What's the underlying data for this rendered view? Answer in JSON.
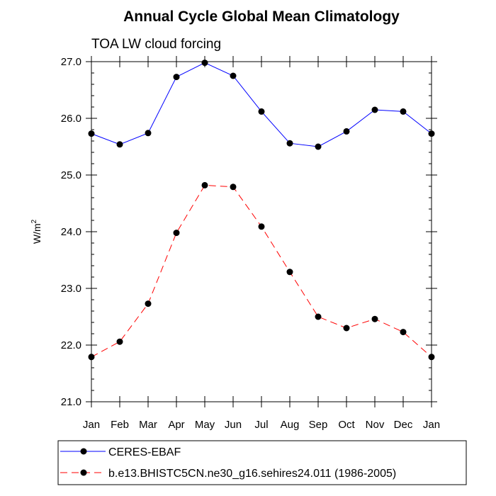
{
  "chart_data": {
    "type": "line",
    "title": "Annual Cycle Global Mean Climatology",
    "subtitle": "TOA LW cloud forcing",
    "ylabel": "W/m",
    "ylabel_sup": "2",
    "ylim": [
      21.0,
      27.0
    ],
    "yticks": [
      "21.0",
      "22.0",
      "23.0",
      "24.0",
      "25.0",
      "26.0",
      "27.0"
    ],
    "categories": [
      "Jan",
      "Feb",
      "Mar",
      "Apr",
      "May",
      "Jun",
      "Jul",
      "Aug",
      "Sep",
      "Oct",
      "Nov",
      "Dec",
      "Jan"
    ],
    "grid": false,
    "legend_position": "bottom",
    "series": [
      {
        "name": "CERES-EBAF",
        "color": "#0000ff",
        "style": "solid",
        "values": [
          25.73,
          25.54,
          25.74,
          26.73,
          26.98,
          26.75,
          26.12,
          25.56,
          25.5,
          25.77,
          26.15,
          26.12,
          25.73
        ]
      },
      {
        "name": "b.e13.BHISTC5CN.ne30_g16.sehires24.011 (1986-2005)",
        "color": "#ff0000",
        "style": "dashed",
        "values": [
          21.79,
          22.06,
          22.73,
          23.98,
          24.82,
          24.79,
          24.09,
          23.29,
          22.5,
          22.3,
          22.46,
          22.23,
          21.79
        ]
      }
    ]
  }
}
